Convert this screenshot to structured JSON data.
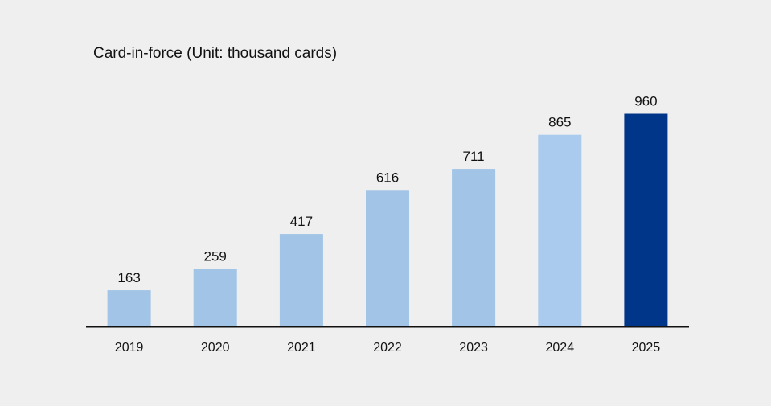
{
  "chart_data": {
    "type": "bar",
    "title": "Card-in-force (Unit: thousand cards)",
    "xlabel": "",
    "ylabel": "",
    "categories": [
      "2019",
      "2020",
      "2021",
      "2022",
      "2023",
      "2024",
      "2025"
    ],
    "values": [
      163,
      259,
      417,
      616,
      711,
      865,
      960
    ],
    "value_labels": [
      "163",
      "259",
      "417",
      "616",
      "711",
      "865",
      "960"
    ],
    "ylim": [
      0,
      1000
    ],
    "grid": false,
    "legend": "none",
    "colors": {
      "bars": [
        "#a1c4e7",
        "#a1c4e7",
        "#a1c4e7",
        "#a1c4e7",
        "#a1c4e7",
        "#aacbee",
        "#003689"
      ],
      "axis": "#111111",
      "background": "#efefef"
    }
  }
}
